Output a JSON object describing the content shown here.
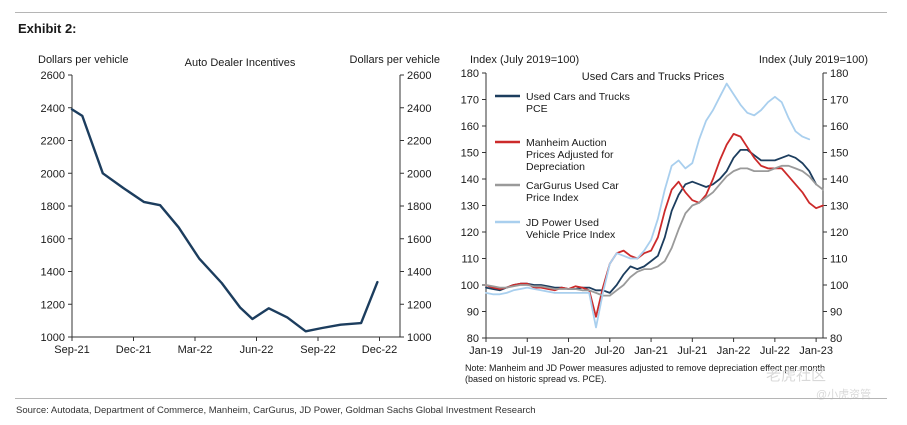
{
  "exhibit_label": "Exhibit 2:",
  "source_note": "Source: Autodata, Department of Commerce, Manheim, CarGurus, JD Power, Goldman Sachs Global Investment Research",
  "watermark": {
    "text1": "老虎社区",
    "text2": "@小虎资管"
  },
  "chart_data": [
    {
      "type": "line",
      "title": "Auto Dealer Incentives",
      "ylabel_left": "Dollars per vehicle",
      "ylabel_right": "Dollars per vehicle",
      "ylim": [
        1000,
        2600
      ],
      "yticks": [
        1000,
        1200,
        1400,
        1600,
        1800,
        2000,
        2200,
        2400,
        2600
      ],
      "xlim": [
        0,
        16
      ],
      "xticks": [
        {
          "x": 0,
          "label": "Sep-21"
        },
        {
          "x": 3,
          "label": "Dec-21"
        },
        {
          "x": 6,
          "label": "Mar-22"
        },
        {
          "x": 9,
          "label": "Jun-22"
        },
        {
          "x": 12,
          "label": "Sep-22"
        },
        {
          "x": 15,
          "label": "Dec-22"
        }
      ],
      "series": [
        {
          "name": "Auto Dealer Incentives",
          "color": "#1c3d5e",
          "x": [
            0,
            0.5,
            1.5,
            2.5,
            3.5,
            4.3,
            5.2,
            6.2,
            7.3,
            8.2,
            8.8,
            9.6,
            10.5,
            11.4,
            12.2,
            13.1,
            14.1,
            14.9
          ],
          "values": [
            2390,
            2350,
            2000,
            1910,
            1825,
            1805,
            1670,
            1480,
            1330,
            1180,
            1110,
            1175,
            1120,
            1035,
            1055,
            1075,
            1085,
            1335
          ]
        }
      ]
    },
    {
      "type": "line",
      "title": "Used Cars and Trucks Prices",
      "ylabel_left": "Index (July 2019=100)",
      "ylabel_right": "Index (July 2019=100)",
      "ylim": [
        80,
        180
      ],
      "yticks": [
        80,
        90,
        100,
        110,
        120,
        130,
        140,
        150,
        160,
        170,
        180
      ],
      "xlim": [
        0,
        49
      ],
      "xticks": [
        {
          "x": 0,
          "label": "Jan-19"
        },
        {
          "x": 6,
          "label": "Jul-19"
        },
        {
          "x": 12,
          "label": "Jan-20"
        },
        {
          "x": 18,
          "label": "Jul-20"
        },
        {
          "x": 24,
          "label": "Jan-21"
        },
        {
          "x": 30,
          "label": "Jul-21"
        },
        {
          "x": 36,
          "label": "Jan-22"
        },
        {
          "x": 42,
          "label": "Jul-22"
        },
        {
          "x": 48,
          "label": "Jan-23"
        }
      ],
      "note": "Note: Manheim and JD Power measures adjusted to remove depreciation effect per month (based on historic spread vs. PCE).",
      "series": [
        {
          "name": "Used Cars and Trucks PCE",
          "color": "#1c3d5e",
          "values": [
            99,
            98.5,
            98,
            99,
            100,
            100.5,
            100.5,
            100,
            100,
            99.5,
            99,
            99,
            98.5,
            98.5,
            99,
            99,
            98,
            98,
            97,
            100,
            104,
            107,
            106,
            107,
            109,
            111,
            118,
            128,
            134,
            138,
            139,
            138,
            137,
            138,
            140,
            143,
            148,
            151,
            151,
            149,
            147,
            147,
            147,
            148,
            149,
            148,
            146,
            143,
            138
          ]
        },
        {
          "name": "Manheim Auction Prices Adjusted for Depreciation",
          "color": "#cc2a2a",
          "values": [
            100,
            99,
            98.5,
            99,
            100,
            100.5,
            100.5,
            99,
            99,
            98.5,
            98,
            99,
            98.5,
            99.5,
            99,
            98,
            88,
            99,
            108,
            112,
            113,
            111,
            110,
            112,
            113,
            118,
            128,
            136,
            139,
            135,
            132,
            131,
            134,
            140,
            147,
            153,
            157,
            156,
            152,
            148,
            145,
            144,
            144,
            144,
            141,
            138,
            135,
            131,
            129,
            130
          ]
        },
        {
          "name": "CarGurus Used Car Price Index",
          "color": "#9a9a9a",
          "values": [
            100,
            99.5,
            99,
            99,
            99.5,
            100,
            100,
            99.5,
            99.5,
            99,
            98.5,
            98.5,
            98.5,
            98.5,
            98,
            98,
            97,
            96,
            96,
            98,
            100,
            103,
            105,
            106,
            106,
            107,
            109,
            114,
            121,
            127,
            130,
            131,
            133,
            135,
            138,
            141,
            143,
            144,
            144,
            143,
            143,
            143,
            144,
            145,
            145,
            144,
            143,
            141,
            138,
            136
          ]
        },
        {
          "name": "JD Power Used Vehicle Price Index",
          "color": "#a9cfee",
          "values": [
            97,
            96.5,
            96.5,
            97,
            98,
            98.5,
            99,
            98.5,
            98,
            97.5,
            97,
            97,
            97,
            97,
            97,
            97,
            84,
            97,
            108,
            112,
            111,
            110,
            110,
            113,
            117,
            125,
            136,
            145,
            147,
            144,
            146,
            155,
            162,
            166,
            171,
            176,
            172,
            168,
            165,
            164,
            166,
            169,
            171,
            169,
            163,
            158,
            156,
            155
          ]
        }
      ]
    }
  ]
}
